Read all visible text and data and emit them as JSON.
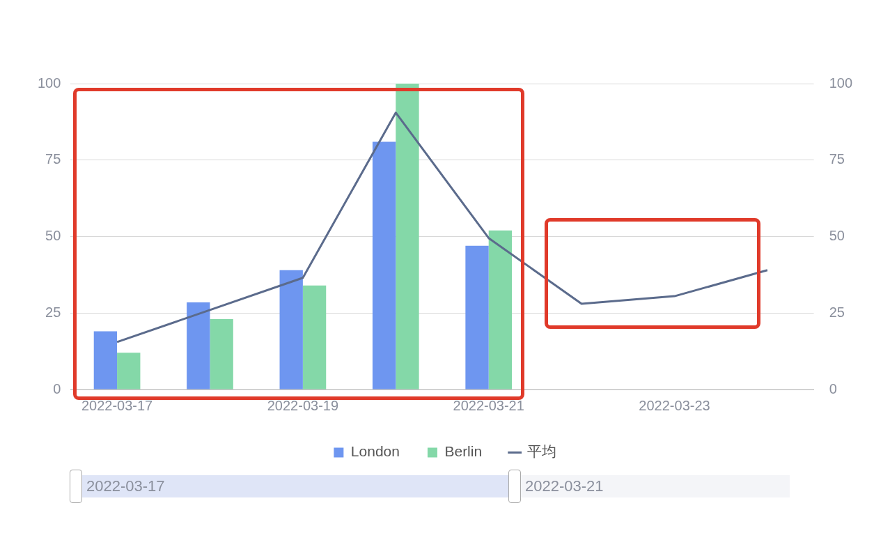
{
  "chart_data": {
    "type": "bar",
    "categories": [
      "2022-03-17",
      null,
      "2022-03-19",
      null,
      "2022-03-21",
      null,
      "2022-03-23",
      null
    ],
    "series": [
      {
        "name": "London",
        "color": "#6e96f0",
        "values": [
          19,
          28.5,
          39,
          81,
          47,
          null,
          null,
          null
        ]
      },
      {
        "name": "Berlin",
        "color": "#84d8a8",
        "values": [
          12,
          23,
          34,
          100,
          52,
          null,
          null,
          null
        ]
      },
      {
        "name": "平均",
        "type": "line",
        "color": "#5b6b8c",
        "values": [
          15.5,
          26,
          36.5,
          90.5,
          49.5,
          28,
          30.5,
          39
        ]
      }
    ],
    "ylim": [
      0,
      100
    ],
    "yticks": [
      0,
      25,
      50,
      75,
      100
    ],
    "y2lim": [
      0,
      100
    ],
    "y2ticks": [
      0,
      25,
      50,
      75,
      100
    ],
    "grid": "y",
    "legend": "bottom",
    "marker": "none",
    "line_style": "solid",
    "annotations": [
      "2022-03-17",
      "2022-03-21"
    ]
  }
}
